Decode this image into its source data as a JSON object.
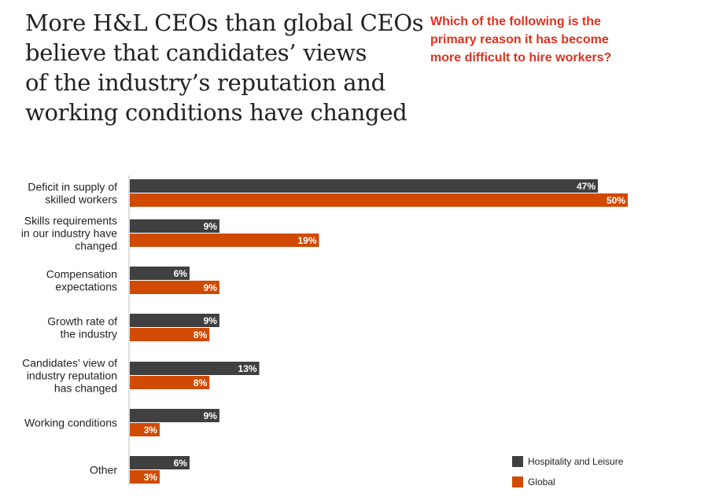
{
  "title_lines": [
    "More H&L CEOs than global CEOs",
    "believe that candidates’ views",
    "of the industry’s reputation and",
    "working conditions have changed"
  ],
  "question_lines": [
    "Which of the following is the",
    "primary reason it has become",
    "more difficult to hire workers?"
  ],
  "colors": {
    "hospitality": "#404041",
    "global": "#d04a02",
    "title": "#222222",
    "question": "#e0301e"
  },
  "chart_data": {
    "type": "bar",
    "orientation": "horizontal",
    "categories": [
      [
        "Deficit in supply of",
        "skilled workers"
      ],
      [
        "Skills requirements",
        "in our industry have",
        "changed"
      ],
      [
        "Compensation",
        "expectations"
      ],
      [
        "Growth rate of",
        "the industry"
      ],
      [
        "Candidates’ view of",
        "industry reputation",
        "has changed"
      ],
      [
        "Working conditions"
      ],
      [
        "Other"
      ]
    ],
    "series": [
      {
        "name": "Hospitality and Leisure",
        "values": [
          47,
          9,
          6,
          9,
          13,
          9,
          6
        ]
      },
      {
        "name": "Global",
        "values": [
          50,
          19,
          9,
          8,
          8,
          3,
          3
        ]
      }
    ],
    "value_suffix": "%",
    "xlim": [
      0,
      50
    ],
    "grid": false,
    "legend_position": "bottom-right"
  }
}
